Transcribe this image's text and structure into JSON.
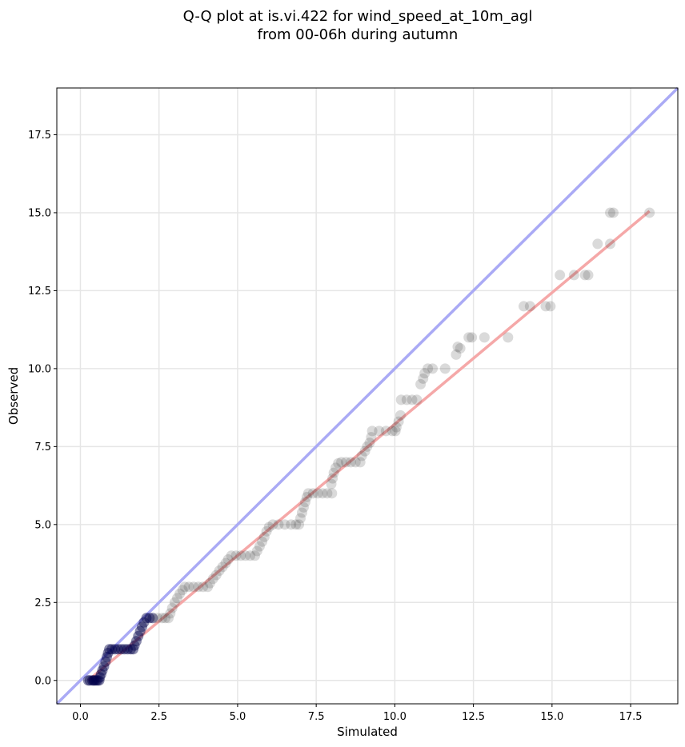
{
  "chart_data": {
    "type": "scatter",
    "title_lines": [
      "Q-Q plot at is.vi.422 for wind_speed_at_10m_agl",
      "from 00-06h during autumn"
    ],
    "xlabel": "Simulated",
    "ylabel": "Observed",
    "xlim": [
      -0.75,
      19.0
    ],
    "ylim": [
      -0.75,
      19.0
    ],
    "xticks": [
      0.0,
      2.5,
      5.0,
      7.5,
      10.0,
      12.5,
      15.0,
      17.5
    ],
    "yticks": [
      0.0,
      2.5,
      5.0,
      7.5,
      10.0,
      12.5,
      15.0,
      17.5
    ],
    "xtick_labels": [
      "0.0",
      "2.5",
      "5.0",
      "7.5",
      "10.0",
      "12.5",
      "15.0",
      "17.5"
    ],
    "ytick_labels": [
      "0.0",
      "2.5",
      "5.0",
      "7.5",
      "10.0",
      "12.5",
      "15.0",
      "17.5"
    ],
    "grid": true,
    "reference_line": {
      "from": [
        -0.75,
        -0.75
      ],
      "to": [
        19.0,
        19.0
      ],
      "color": "#aaaaf5"
    },
    "fit_line": {
      "from": [
        0.25,
        0.0
      ],
      "to": [
        18.1,
        15.05
      ],
      "color": "#f5a8a8"
    },
    "dense_marker_color": "#00004a",
    "marker_color": "#333333",
    "points": [
      [
        0.25,
        0.0
      ],
      [
        0.3,
        0.0
      ],
      [
        0.38,
        0.0
      ],
      [
        0.42,
        0.0
      ],
      [
        0.45,
        0.0
      ],
      [
        0.5,
        0.0
      ],
      [
        0.55,
        0.0
      ],
      [
        0.6,
        0.0
      ],
      [
        0.62,
        0.1
      ],
      [
        0.66,
        0.2
      ],
      [
        0.7,
        0.32
      ],
      [
        0.75,
        0.45
      ],
      [
        0.8,
        0.6
      ],
      [
        0.84,
        0.75
      ],
      [
        0.88,
        0.88
      ],
      [
        0.92,
        1.0
      ],
      [
        1.0,
        1.0
      ],
      [
        1.1,
        1.0
      ],
      [
        1.2,
        1.0
      ],
      [
        1.3,
        1.0
      ],
      [
        1.4,
        1.0
      ],
      [
        1.5,
        1.0
      ],
      [
        1.6,
        1.0
      ],
      [
        1.68,
        1.0
      ],
      [
        1.72,
        1.12
      ],
      [
        1.78,
        1.26
      ],
      [
        1.84,
        1.42
      ],
      [
        1.9,
        1.58
      ],
      [
        1.96,
        1.72
      ],
      [
        2.02,
        1.86
      ],
      [
        2.1,
        2.0
      ],
      [
        2.2,
        2.0
      ],
      [
        2.3,
        2.0
      ],
      [
        2.45,
        2.0
      ],
      [
        2.6,
        2.0
      ],
      [
        2.7,
        2.0
      ],
      [
        2.8,
        2.0
      ],
      [
        2.86,
        2.15
      ],
      [
        2.92,
        2.32
      ],
      [
        3.0,
        2.5
      ],
      [
        3.08,
        2.64
      ],
      [
        3.16,
        2.78
      ],
      [
        3.25,
        2.9
      ],
      [
        3.32,
        3.0
      ],
      [
        3.45,
        3.0
      ],
      [
        3.6,
        3.0
      ],
      [
        3.75,
        3.0
      ],
      [
        3.9,
        3.0
      ],
      [
        4.05,
        3.0
      ],
      [
        4.12,
        3.12
      ],
      [
        4.22,
        3.26
      ],
      [
        4.32,
        3.38
      ],
      [
        4.42,
        3.52
      ],
      [
        4.52,
        3.64
      ],
      [
        4.62,
        3.76
      ],
      [
        4.7,
        3.88
      ],
      [
        4.8,
        4.0
      ],
      [
        4.95,
        4.0
      ],
      [
        5.1,
        4.0
      ],
      [
        5.25,
        4.0
      ],
      [
        5.4,
        4.0
      ],
      [
        5.55,
        4.0
      ],
      [
        5.62,
        4.15
      ],
      [
        5.7,
        4.3
      ],
      [
        5.78,
        4.45
      ],
      [
        5.85,
        4.6
      ],
      [
        5.92,
        4.78
      ],
      [
        6.0,
        4.92
      ],
      [
        6.12,
        5.0
      ],
      [
        6.3,
        5.0
      ],
      [
        6.5,
        5.0
      ],
      [
        6.7,
        5.0
      ],
      [
        6.85,
        5.0
      ],
      [
        6.95,
        5.0
      ],
      [
        7.0,
        5.2
      ],
      [
        7.05,
        5.38
      ],
      [
        7.1,
        5.55
      ],
      [
        7.15,
        5.72
      ],
      [
        7.2,
        5.88
      ],
      [
        7.25,
        6.0
      ],
      [
        7.4,
        6.0
      ],
      [
        7.55,
        6.0
      ],
      [
        7.7,
        6.0
      ],
      [
        7.85,
        6.0
      ],
      [
        8.0,
        6.0
      ],
      [
        7.98,
        6.3
      ],
      [
        8.02,
        6.48
      ],
      [
        8.06,
        6.66
      ],
      [
        8.12,
        6.82
      ],
      [
        8.2,
        6.96
      ],
      [
        8.3,
        7.0
      ],
      [
        8.45,
        7.0
      ],
      [
        8.6,
        7.0
      ],
      [
        8.75,
        7.0
      ],
      [
        8.9,
        7.0
      ],
      [
        8.95,
        7.2
      ],
      [
        9.05,
        7.35
      ],
      [
        9.12,
        7.5
      ],
      [
        9.2,
        7.62
      ],
      [
        9.25,
        7.8
      ],
      [
        9.28,
        8.0
      ],
      [
        9.5,
        8.0
      ],
      [
        9.72,
        8.0
      ],
      [
        9.92,
        8.0
      ],
      [
        10.02,
        8.0
      ],
      [
        10.05,
        8.12
      ],
      [
        10.12,
        8.3
      ],
      [
        10.18,
        8.5
      ],
      [
        10.2,
        9.0
      ],
      [
        10.38,
        9.0
      ],
      [
        10.55,
        9.0
      ],
      [
        10.7,
        9.0
      ],
      [
        10.82,
        9.5
      ],
      [
        10.9,
        9.68
      ],
      [
        10.95,
        9.85
      ],
      [
        11.05,
        10.0
      ],
      [
        11.2,
        10.0
      ],
      [
        11.6,
        10.0
      ],
      [
        11.95,
        10.45
      ],
      [
        12.0,
        10.7
      ],
      [
        12.08,
        10.65
      ],
      [
        12.35,
        11.0
      ],
      [
        12.45,
        11.0
      ],
      [
        12.85,
        11.0
      ],
      [
        13.6,
        11.0
      ],
      [
        14.1,
        12.0
      ],
      [
        14.3,
        12.0
      ],
      [
        14.8,
        12.0
      ],
      [
        14.95,
        12.0
      ],
      [
        15.25,
        13.0
      ],
      [
        15.7,
        13.0
      ],
      [
        16.05,
        13.0
      ],
      [
        16.15,
        13.0
      ],
      [
        16.45,
        14.0
      ],
      [
        16.85,
        14.0
      ],
      [
        16.85,
        15.0
      ],
      [
        16.95,
        15.0
      ],
      [
        18.1,
        15.0
      ]
    ]
  }
}
